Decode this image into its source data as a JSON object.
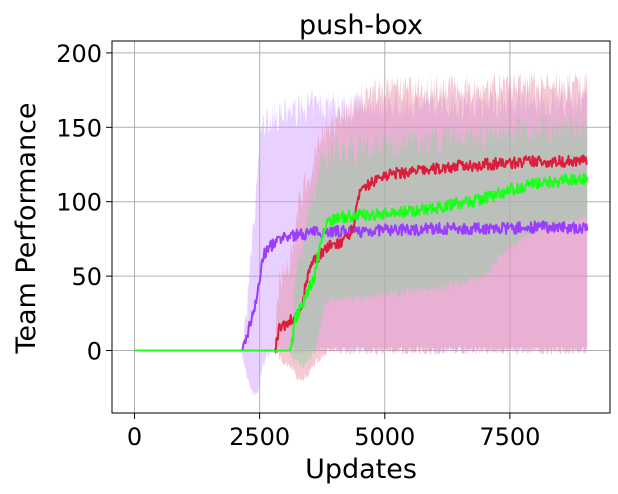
{
  "chart_data": {
    "type": "line",
    "title": "push-box",
    "xlabel": "Updates",
    "ylabel": "Team Performance",
    "xlim": [
      -450,
      9500
    ],
    "ylim": [
      -42,
      208
    ],
    "xticks": [
      0,
      2500,
      5000,
      7500
    ],
    "xtick_labels": [
      "0",
      "2500",
      "5000",
      "7500"
    ],
    "yticks": [
      0,
      50,
      100,
      150,
      200
    ],
    "ytick_labels": [
      "0",
      "50",
      "100",
      "150",
      "200"
    ],
    "grid": true,
    "legend": "none",
    "series": [
      {
        "color": "#9b3dff",
        "band_color": "#cc99ff",
        "x": [
          0,
          2000,
          2150,
          2250,
          2400,
          2500,
          2550,
          2700,
          2900,
          3100,
          3300,
          3500,
          3700,
          3900,
          4200,
          4500,
          5000,
          5500,
          6000,
          6500,
          7000,
          7500,
          8000,
          8500,
          9050
        ],
        "values": [
          0,
          0,
          0,
          10,
          30,
          45,
          62,
          70,
          74,
          77,
          78,
          79,
          80,
          80,
          80,
          80,
          81,
          81,
          82,
          82,
          82,
          82,
          83,
          83,
          82
        ],
        "band_low": [
          0,
          0,
          0,
          -20,
          -30,
          -25,
          -10,
          0,
          0,
          0,
          0,
          0,
          0,
          0,
          0,
          0,
          0,
          0,
          0,
          0,
          0,
          0,
          0,
          0,
          0
        ],
        "band_high": [
          0,
          0,
          0,
          30,
          90,
          140,
          150,
          155,
          158,
          160,
          162,
          164,
          165,
          165,
          165,
          165,
          165,
          166,
          166,
          166,
          166,
          167,
          167,
          167,
          167
        ]
      },
      {
        "color": "#dc1e3c",
        "band_color": "#e8879c",
        "x": [
          0,
          2800,
          2900,
          3100,
          3200,
          3300,
          3500,
          3700,
          3900,
          4100,
          4300,
          4400,
          4500,
          4700,
          5000,
          5500,
          6000,
          6500,
          7000,
          7500,
          8000,
          8500,
          9050
        ],
        "values": [
          0,
          0,
          15,
          20,
          22,
          25,
          55,
          65,
          70,
          72,
          75,
          90,
          105,
          112,
          118,
          120,
          122,
          124,
          125,
          126,
          127,
          127,
          128
        ],
        "band_low": [
          0,
          0,
          -5,
          -10,
          -15,
          -20,
          -15,
          -5,
          0,
          0,
          0,
          0,
          0,
          0,
          0,
          0,
          0,
          0,
          0,
          0,
          0,
          0,
          0
        ],
        "band_high": [
          0,
          0,
          50,
          60,
          80,
          100,
          120,
          140,
          150,
          155,
          160,
          165,
          170,
          172,
          175,
          175,
          176,
          176,
          177,
          177,
          178,
          178,
          178
        ]
      },
      {
        "color": "#1bff1b",
        "band_color": "#88d49f",
        "x": [
          0,
          3100,
          3150,
          3200,
          3400,
          3600,
          3700,
          3800,
          3900,
          4200,
          4500,
          5000,
          5500,
          6000,
          6500,
          7000,
          7500,
          8000,
          8500,
          9050
        ],
        "values": [
          0,
          0,
          5,
          20,
          35,
          50,
          70,
          82,
          88,
          90,
          91,
          92,
          94,
          96,
          99,
          102,
          108,
          112,
          114,
          115
        ],
        "band_low": [
          0,
          0,
          -5,
          -8,
          -10,
          0,
          15,
          30,
          35,
          35,
          36,
          38,
          40,
          42,
          45,
          50,
          70,
          80,
          85,
          90
        ],
        "band_high": [
          0,
          0,
          20,
          45,
          80,
          110,
          125,
          130,
          132,
          134,
          136,
          138,
          140,
          142,
          144,
          144,
          146,
          148,
          150,
          152
        ]
      }
    ]
  }
}
